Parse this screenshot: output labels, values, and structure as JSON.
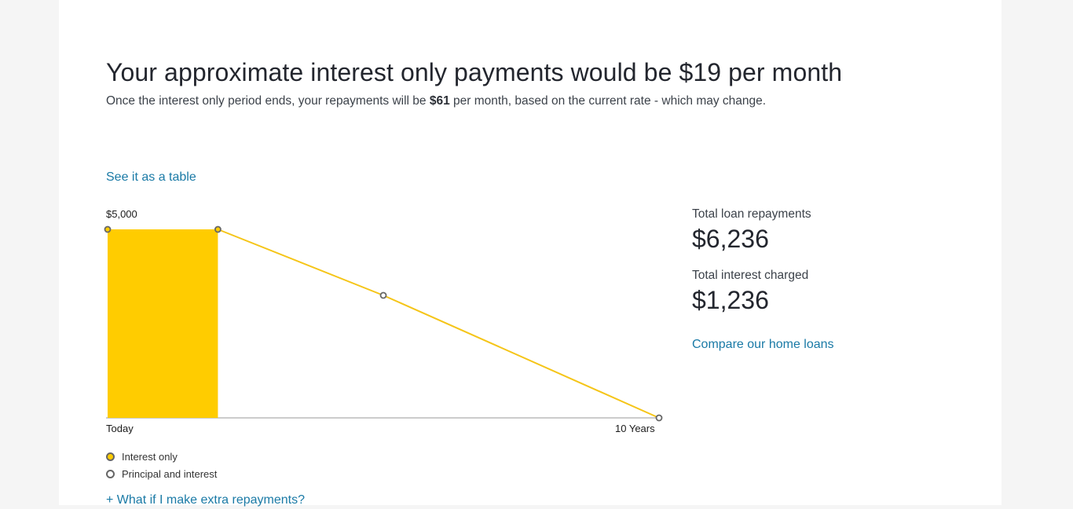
{
  "headline": "Your approximate interest only payments would be $19 per month",
  "subline": {
    "before": "Once the interest only period ends, your repayments will be ",
    "amount": "$61",
    "after": " per month, based on the current rate - which may change."
  },
  "see_table_link": "See it as a table",
  "chart_data": {
    "type": "area",
    "y_top_label": "$5,000",
    "x_start_label": "Today",
    "x_end_label": "10 Years",
    "ylim": [
      0,
      5000
    ],
    "xlim": [
      0,
      10
    ],
    "interest_only": {
      "name": "Interest only",
      "x": [
        0,
        2
      ],
      "y": [
        5000,
        5000
      ]
    },
    "principal_and_interest": {
      "name": "Principal and interest",
      "x": [
        2,
        5,
        10
      ],
      "y": [
        5000,
        3250,
        0
      ]
    },
    "colors": {
      "interest_only": "#ffcc00",
      "principal_and_interest": "#f5c518",
      "axis": "#cccccc",
      "marker_stroke": "#666666"
    }
  },
  "legend": {
    "interest_only": "Interest only",
    "principal_and_interest": "Principal and interest"
  },
  "extra_repayments_link": "+ What if I make extra repayments?",
  "summary": {
    "total_repayments_label": "Total loan repayments",
    "total_repayments_value": "$6,236",
    "total_interest_label": "Total interest charged",
    "total_interest_value": "$1,236",
    "compare_link": "Compare our home loans"
  }
}
